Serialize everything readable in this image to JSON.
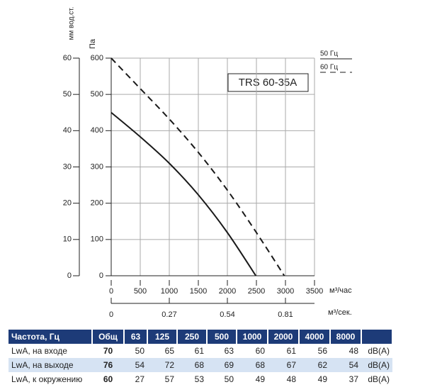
{
  "chart_data": {
    "type": "line",
    "annotation": "TRS 60-35A",
    "ylabel": "Па",
    "y2label": "мм вод.ст.",
    "xlabel": "м³/час",
    "x2label": "м³/сек.",
    "xlim": [
      0,
      3500
    ],
    "xticks": [
      0,
      500,
      1000,
      1500,
      2000,
      2500,
      3000,
      3500
    ],
    "x2lim": [
      0,
      0.945
    ],
    "x2ticks": [
      0,
      0.27,
      0.54,
      0.81
    ],
    "ylim": [
      0,
      600
    ],
    "yticks": [
      0,
      100,
      200,
      300,
      400,
      500,
      600
    ],
    "y2lim": [
      0,
      60
    ],
    "y2ticks": [
      0,
      10,
      20,
      30,
      40,
      50,
      60
    ],
    "grid": true,
    "legend": "top-right",
    "series": [
      {
        "name": "50 Гц",
        "color": "#1a1a1a",
        "dash": "solid",
        "x": [
          0,
          500,
          1000,
          1500,
          2000,
          2490
        ],
        "values": [
          450,
          383,
          310,
          223,
          119,
          0
        ]
      },
      {
        "name": "60 Гц",
        "color": "#1a1a1a",
        "dash": "dashed",
        "x": [
          0,
          500,
          1000,
          1500,
          2000,
          2500,
          2980
        ],
        "values": [
          600,
          516,
          432,
          340,
          236,
          119,
          0
        ]
      }
    ]
  },
  "table": {
    "header": [
      "Частота, Гц",
      "Общ",
      "63",
      "125",
      "250",
      "500",
      "1000",
      "2000",
      "4000",
      "8000"
    ],
    "rows": [
      [
        "LwA, на входе",
        "70",
        "50",
        "65",
        "61",
        "63",
        "60",
        "61",
        "56",
        "48",
        "dB(A)"
      ],
      [
        "LwA, на выходе",
        "76",
        "54",
        "72",
        "68",
        "69",
        "68",
        "67",
        "62",
        "54",
        "dB(A)"
      ],
      [
        "LwA, к окружению",
        "60",
        "27",
        "57",
        "53",
        "50",
        "49",
        "48",
        "49",
        "37",
        "dB(A)"
      ]
    ]
  }
}
